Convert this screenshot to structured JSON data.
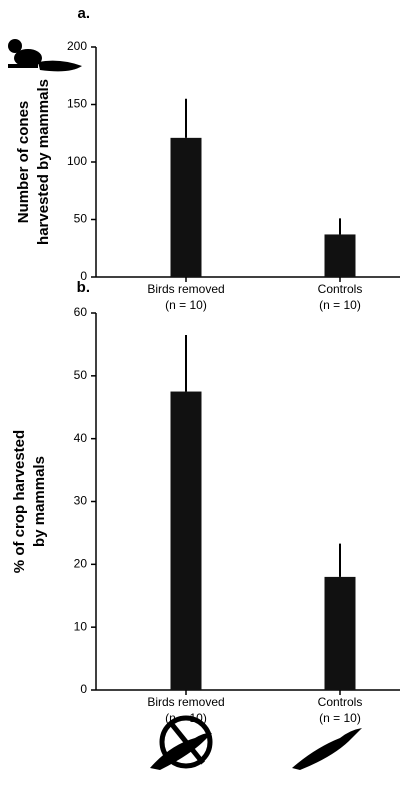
{
  "chart_data": [
    {
      "type": "bar",
      "label": "a.",
      "ylabel": [
        "Number of cones",
        "harvested by mammals"
      ],
      "categories": [
        "Birds removed",
        "Controls"
      ],
      "category_notes": [
        "(n = 10)",
        "(n = 10)"
      ],
      "values": [
        121,
        37
      ],
      "errors": [
        34,
        14
      ],
      "color": "#111111",
      "ylim": [
        0,
        200
      ],
      "yticks": [
        0,
        50,
        100,
        150,
        200
      ]
    },
    {
      "type": "bar",
      "label": "b.",
      "ylabel": [
        "% of crop harvested",
        "by mammals"
      ],
      "categories": [
        "Birds removed",
        "Controls"
      ],
      "category_notes": [
        "(n = 10)",
        "(n = 10)"
      ],
      "values": [
        47.5,
        18
      ],
      "errors": [
        9,
        5.3
      ],
      "color": "#111111",
      "ylim": [
        0,
        60
      ],
      "yticks": [
        0,
        10,
        20,
        30,
        40,
        50,
        60
      ]
    }
  ]
}
